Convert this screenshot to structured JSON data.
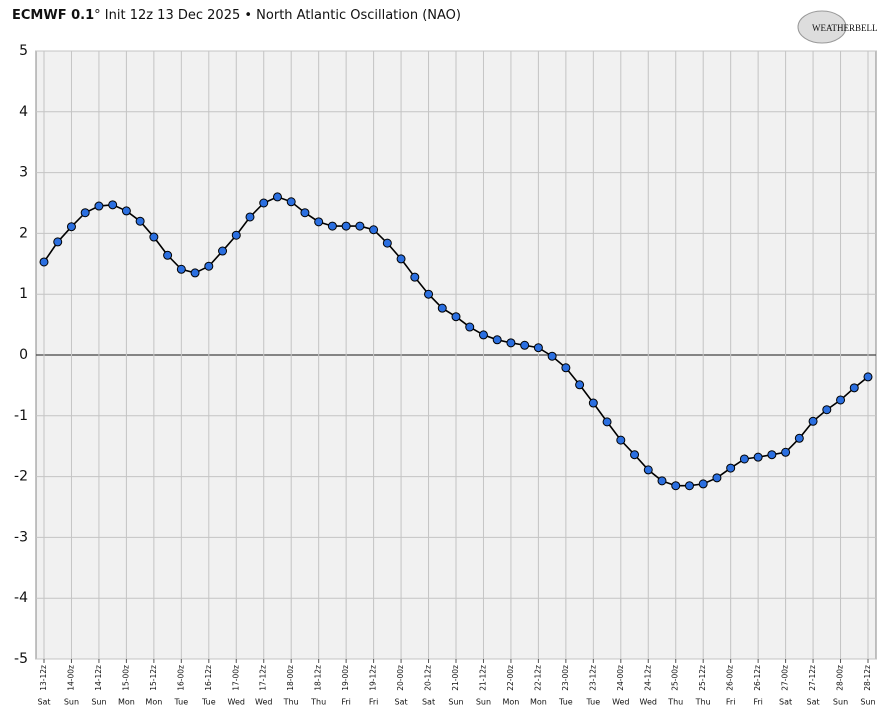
{
  "chart_data": {
    "type": "line",
    "title_bold": "ECMWF 0.1",
    "title": "° Init 12z 13 Dec 2025 • North Atlantic Oscillation (NAO)",
    "logo": "WEATHERBELL",
    "categories": [
      "13-12z",
      null,
      "14-00z",
      null,
      "14-12z",
      null,
      "15-00z",
      null,
      "15-12z",
      null,
      "16-00z",
      null,
      "16-12z",
      null,
      "17-00z",
      null,
      "17-12z",
      null,
      "18-00z",
      null,
      "18-12z",
      null,
      "19-00z",
      null,
      "19-12z",
      null,
      "20-00z",
      null,
      "20-12z",
      null,
      "21-00z",
      null,
      "21-12z",
      null,
      "22-00z",
      null,
      "22-12z",
      null,
      "23-00z",
      null,
      "23-12z",
      null,
      "24-00z",
      null,
      "24-12z",
      null,
      "25-00z",
      null,
      "25-12z",
      null,
      "26-00z",
      null,
      "26-12z",
      null,
      "27-00z",
      null,
      "27-12z",
      null,
      "28-00z",
      null,
      "28-12z"
    ],
    "days": [
      "Sat",
      null,
      "Sun",
      null,
      "Sun",
      null,
      "Mon",
      null,
      "Mon",
      null,
      "Tue",
      null,
      "Tue",
      null,
      "Wed",
      null,
      "Wed",
      null,
      "Thu",
      null,
      "Thu",
      null,
      "Fri",
      null,
      "Fri",
      null,
      "Sat",
      null,
      "Sat",
      null,
      "Sun",
      null,
      "Sun",
      null,
      "Mon",
      null,
      "Mon",
      null,
      "Tue",
      null,
      "Tue",
      null,
      "Wed",
      null,
      "Wed",
      null,
      "Thu",
      null,
      "Thu",
      null,
      "Fri",
      null,
      "Fri",
      null,
      "Sat",
      null,
      "Sat",
      null,
      "Sun",
      null,
      "Sun"
    ],
    "series": [
      {
        "name": "NAO",
        "color": "#2b6fe0",
        "values": [
          1.53,
          1.86,
          2.11,
          2.34,
          2.45,
          2.47,
          2.37,
          2.2,
          1.94,
          1.64,
          1.41,
          1.35,
          1.46,
          1.71,
          1.97,
          2.27,
          2.5,
          2.6,
          2.52,
          2.34,
          2.19,
          2.12,
          2.12,
          2.12,
          2.06,
          1.84,
          1.58,
          1.28,
          1.0,
          0.77,
          0.63,
          0.46,
          0.33,
          0.25,
          0.2,
          0.16,
          0.12,
          -0.02,
          -0.21,
          -0.49,
          -0.79,
          -1.1,
          -1.4,
          -1.64,
          -1.89,
          -2.07,
          -2.15,
          -2.15,
          -2.12,
          -2.02,
          -1.86,
          -1.71,
          -1.68,
          -1.64,
          -1.6,
          -1.37,
          -1.09,
          -0.9,
          -0.74,
          -0.54,
          -0.36
        ]
      }
    ],
    "ylim": [
      -5,
      5
    ],
    "yticks": [
      -5,
      -4,
      -3,
      -2,
      -1,
      0,
      1,
      2,
      3,
      4,
      5
    ],
    "grid": true
  }
}
